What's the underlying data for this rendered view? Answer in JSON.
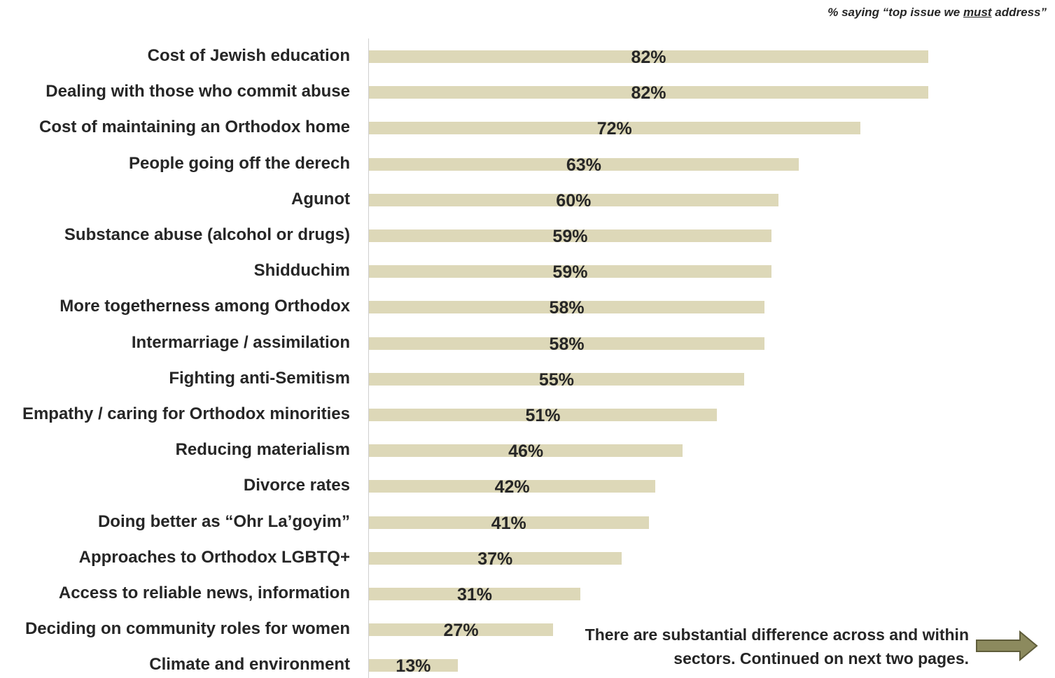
{
  "subtitle": {
    "prefix": "% saying “top issue we ",
    "emphasis": "must",
    "suffix": " address”"
  },
  "note": {
    "text": "There are substantial difference across and within sectors. Continued on next two pages."
  },
  "icons": {
    "next_arrow": "right-arrow-icon"
  },
  "colors": {
    "bar": "#ddd8b8",
    "arrow_fill": "#8c8a5e",
    "arrow_stroke": "#5e5c3a",
    "text": "#262626"
  },
  "chart_data": {
    "type": "bar",
    "orientation": "horizontal",
    "categories": [
      "Cost of Jewish education",
      "Dealing with those who commit abuse",
      "Cost of maintaining an Orthodox home",
      "People going off the derech",
      "Agunot",
      "Substance abuse (alcohol or drugs)",
      "Shidduchim",
      "More togetherness among Orthodox",
      "Intermarriage / assimilation",
      "Fighting anti-Semitism",
      "Empathy / caring for Orthodox minorities",
      "Reducing materialism",
      "Divorce rates",
      "Doing better as “Ohr La’goyim”",
      "Approaches to Orthodox LGBTQ+",
      "Access to reliable news, information",
      "Deciding on community roles for women",
      "Climate and environment"
    ],
    "values": [
      82,
      82,
      72,
      63,
      60,
      59,
      59,
      58,
      58,
      55,
      51,
      46,
      42,
      41,
      37,
      31,
      27,
      13
    ],
    "data_labels": [
      "82%",
      "82%",
      "72%",
      "63%",
      "60%",
      "59%",
      "59%",
      "58%",
      "58%",
      "55%",
      "51%",
      "46%",
      "42%",
      "41%",
      "37%",
      "31%",
      "27%",
      "13%"
    ],
    "xlim": [
      0,
      100
    ],
    "grid": false,
    "legend": "none"
  }
}
